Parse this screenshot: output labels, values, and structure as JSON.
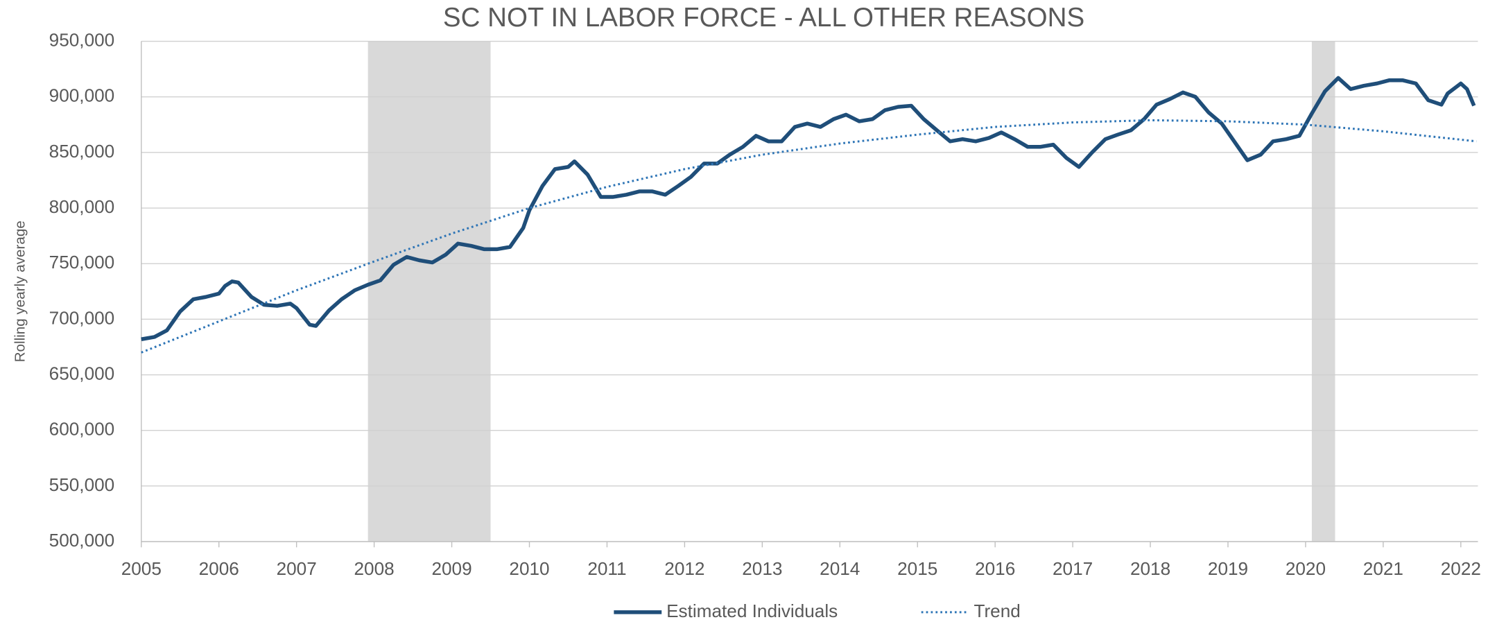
{
  "chart_data": {
    "type": "line",
    "title": "SC NOT IN LABOR FORCE - ALL OTHER REASONS",
    "y_label": "Rolling yearly average",
    "xlim": [
      2005,
      2022.22
    ],
    "xticks": [
      2005,
      2006,
      2007,
      2008,
      2009,
      2010,
      2011,
      2012,
      2013,
      2014,
      2015,
      2016,
      2017,
      2018,
      2019,
      2020,
      2021,
      2022
    ],
    "ylim": [
      500000,
      950000
    ],
    "yticks": [
      {
        "value": 500000,
        "label": "500,000"
      },
      {
        "value": 550000,
        "label": "550,000"
      },
      {
        "value": 600000,
        "label": "600,000"
      },
      {
        "value": 650000,
        "label": "650,000"
      },
      {
        "value": 700000,
        "label": "700,000"
      },
      {
        "value": 750000,
        "label": "750,000"
      },
      {
        "value": 800000,
        "label": "800,000"
      },
      {
        "value": 850000,
        "label": "850,000"
      },
      {
        "value": 900000,
        "label": "900,000"
      },
      {
        "value": 950000,
        "label": "950,000"
      }
    ],
    "grid": true,
    "legend": "bottom",
    "shaded_regions": [
      {
        "start": 2007.92,
        "end": 2009.5,
        "color": "#d9d9d9"
      },
      {
        "start": 2020.08,
        "end": 2020.38,
        "color": "#d9d9d9"
      }
    ],
    "series": [
      {
        "name": "Estimated Individuals",
        "color": "#1f4e79",
        "style": "solid",
        "x": [
          2005.0,
          2005.17,
          2005.33,
          2005.5,
          2005.67,
          2005.83,
          2006.0,
          2006.08,
          2006.17,
          2006.25,
          2006.42,
          2006.58,
          2006.75,
          2006.92,
          2007.0,
          2007.17,
          2007.25,
          2007.42,
          2007.58,
          2007.75,
          2007.92,
          2008.08,
          2008.25,
          2008.42,
          2008.58,
          2008.75,
          2008.92,
          2009.08,
          2009.25,
          2009.42,
          2009.58,
          2009.75,
          2009.92,
          2010.0,
          2010.17,
          2010.33,
          2010.5,
          2010.58,
          2010.75,
          2010.92,
          2011.08,
          2011.25,
          2011.42,
          2011.58,
          2011.75,
          2011.92,
          2012.08,
          2012.25,
          2012.42,
          2012.58,
          2012.75,
          2012.92,
          2013.08,
          2013.25,
          2013.42,
          2013.58,
          2013.75,
          2013.92,
          2014.08,
          2014.25,
          2014.42,
          2014.58,
          2014.75,
          2014.92,
          2015.08,
          2015.25,
          2015.42,
          2015.58,
          2015.75,
          2015.92,
          2016.08,
          2016.25,
          2016.42,
          2016.58,
          2016.75,
          2016.92,
          2017.08,
          2017.25,
          2017.42,
          2017.58,
          2017.75,
          2017.92,
          2018.08,
          2018.25,
          2018.42,
          2018.58,
          2018.75,
          2018.92,
          2019.08,
          2019.25,
          2019.42,
          2019.58,
          2019.75,
          2019.92,
          2020.08,
          2020.25,
          2020.42,
          2020.58,
          2020.75,
          2020.92,
          2021.08,
          2021.25,
          2021.42,
          2021.58,
          2021.75,
          2021.83,
          2022.0,
          2022.08,
          2022.17
        ],
        "values": [
          682000,
          684000,
          690000,
          707000,
          718000,
          720000,
          723000,
          730000,
          734000,
          733000,
          720000,
          713000,
          712000,
          714000,
          710000,
          695000,
          694000,
          708000,
          718000,
          726000,
          731000,
          735000,
          749000,
          756000,
          753000,
          751000,
          758000,
          768000,
          766000,
          763000,
          763000,
          765000,
          782000,
          798000,
          820000,
          835000,
          837000,
          842000,
          830000,
          810000,
          810000,
          812000,
          815000,
          815000,
          812000,
          820000,
          828000,
          840000,
          840000,
          848000,
          855000,
          865000,
          860000,
          860000,
          873000,
          876000,
          873000,
          880000,
          884000,
          878000,
          880000,
          888000,
          891000,
          892000,
          880000,
          870000,
          860000,
          862000,
          860000,
          863000,
          868000,
          862000,
          855000,
          855000,
          857000,
          845000,
          837000,
          850000,
          862000,
          866000,
          870000,
          880000,
          893000,
          898000,
          904000,
          900000,
          886000,
          876000,
          860000,
          843000,
          848000,
          860000,
          862000,
          865000,
          885000,
          905000,
          917000,
          907000,
          910000,
          912000,
          915000,
          915000,
          912000,
          897000,
          893000,
          903000,
          912000,
          907000,
          892000
        ]
      },
      {
        "name": "Trend",
        "color": "#2e75b6",
        "style": "dotted",
        "x": [
          2005,
          2006,
          2007,
          2008,
          2009,
          2010,
          2011,
          2012,
          2013,
          2014,
          2015,
          2016,
          2017,
          2018,
          2019,
          2020,
          2021,
          2022.2
        ],
        "values": [
          670000,
          698000,
          726000,
          752000,
          777000,
          800000,
          819000,
          835000,
          848000,
          858000,
          866000,
          873000,
          877000,
          879000,
          878000,
          875000,
          869000,
          860000
        ]
      }
    ]
  }
}
